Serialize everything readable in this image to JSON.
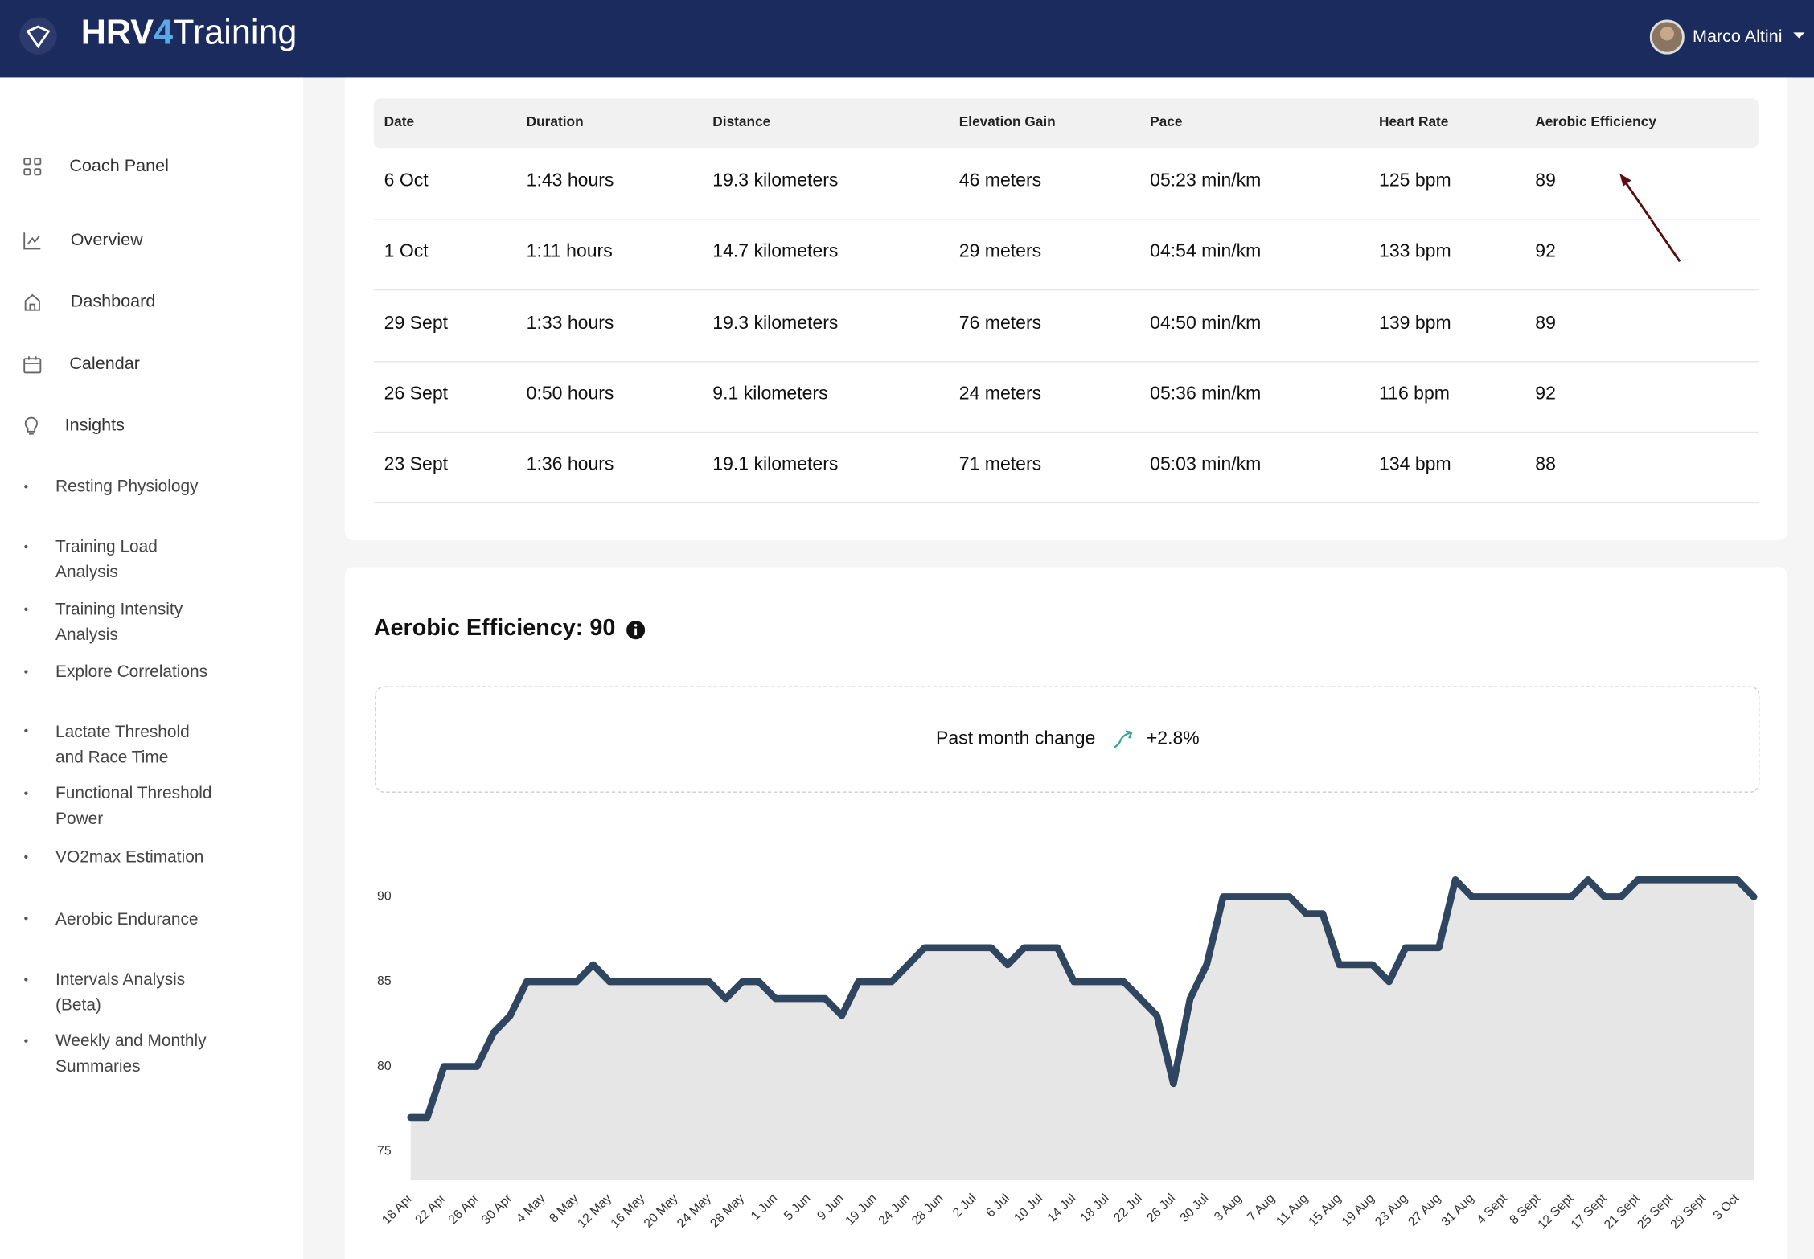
{
  "header": {
    "brand_parts": [
      "HRV",
      "4",
      "Training"
    ],
    "user": "Marco Altini"
  },
  "sidebar": {
    "items": [
      "Coach Panel",
      "Overview",
      "Dashboard",
      "Calendar",
      "Insights"
    ],
    "subitems": [
      "Resting Physiology",
      "Training Load Analysis",
      "Training Intensity Analysis",
      "Explore Correlations",
      "Lactate Threshold and Race Time",
      "Functional Threshold Power",
      "VO2max Estimation",
      "Aerobic Endurance",
      "Intervals Analysis (Beta)",
      "Weekly and Monthly Summaries"
    ]
  },
  "table": {
    "columns": [
      "Date",
      "Duration",
      "Distance",
      "Elevation Gain",
      "Pace",
      "Heart Rate",
      "Aerobic Efficiency"
    ],
    "rows": [
      [
        "6 Oct",
        "1:43 hours",
        "19.3 kilometers",
        "46 meters",
        "05:23 min/km",
        "125 bpm",
        "89"
      ],
      [
        "1 Oct",
        "1:11 hours",
        "14.7 kilometers",
        "29 meters",
        "04:54 min/km",
        "133 bpm",
        "92"
      ],
      [
        "29 Sept",
        "1:33 hours",
        "19.3 kilometers",
        "76 meters",
        "04:50 min/km",
        "139 bpm",
        "89"
      ],
      [
        "26 Sept",
        "0:50 hours",
        "9.1 kilometers",
        "24 meters",
        "05:36 min/km",
        "116 bpm",
        "92"
      ],
      [
        "23 Sept",
        "1:36 hours",
        "19.1 kilometers",
        "71 meters",
        "05:03 min/km",
        "134 bpm",
        "88"
      ]
    ]
  },
  "chart": {
    "type": "line",
    "title": "Aerobic Efficiency: 90",
    "change_label": "Past month change",
    "change_value": "+2.8%",
    "color": "#2f4560",
    "area_color": "#e6e6e6",
    "categories": [
      "18 Apr",
      null,
      "22 Apr",
      null,
      "26 Apr",
      null,
      "30 Apr",
      null,
      "4 May",
      null,
      "8 May",
      null,
      "12 May",
      null,
      "16 May",
      null,
      "20 May",
      null,
      "24 May",
      null,
      "28 May",
      null,
      "1 Jun",
      null,
      "5 Jun",
      null,
      "9 Jun",
      null,
      "19 Jun",
      null,
      "24 Jun",
      null,
      "28 Jun",
      null,
      "2 Jul",
      null,
      "6 Jul",
      null,
      "10 Jul",
      null,
      "14 Jul",
      null,
      "18 Jul",
      null,
      "22 Jul",
      null,
      "26 Jul",
      null,
      "30 Jul",
      null,
      "3 Aug",
      null,
      "7 Aug",
      null,
      "11 Aug",
      null,
      "15 Aug",
      null,
      "19 Aug",
      null,
      "23 Aug",
      null,
      "27 Aug",
      null,
      "31 Aug",
      null,
      "4 Sept",
      null,
      "8 Sept",
      null,
      "12 Sept",
      null,
      "17 Sept",
      null,
      "21 Sept",
      null,
      "25 Sept",
      null,
      "29 Sept",
      null,
      "3 Oct",
      null
    ],
    "values": [
      77,
      77,
      80,
      80,
      80,
      82,
      83,
      85,
      85,
      85,
      85,
      86,
      85,
      85,
      85,
      85,
      85,
      85,
      85,
      84,
      85,
      85,
      84,
      84,
      84,
      84,
      83,
      85,
      85,
      85,
      86,
      87,
      87,
      87,
      87,
      87,
      86,
      87,
      87,
      87,
      85,
      85,
      85,
      85,
      84,
      83,
      79,
      84,
      86,
      90,
      90,
      90,
      90,
      90,
      89,
      89,
      86,
      86,
      86,
      85,
      87,
      87,
      87,
      91,
      90,
      90,
      90,
      90,
      90,
      90,
      90,
      91,
      90,
      90,
      91,
      91,
      91,
      91,
      91,
      91,
      91,
      90
    ],
    "ylim": [
      73.3,
      91.5
    ],
    "yticks": [
      75,
      80,
      85,
      90
    ]
  }
}
